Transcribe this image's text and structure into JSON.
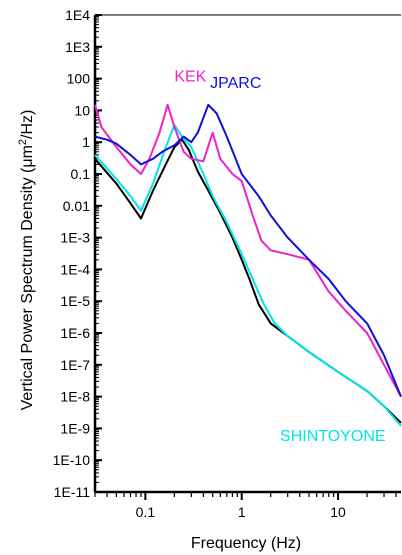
{
  "chart_data": {
    "type": "line",
    "xlabel": "Frequency (Hz)",
    "ylabel_parts": [
      "Vertical Power Spectrum Density (",
      "μm",
      "2",
      "/Hz)"
    ],
    "xscale": "log",
    "yscale": "log",
    "xlim": [
      0.03,
      45
    ],
    "ylim": [
      1e-11,
      10000
    ],
    "x_tick_labels": [
      {
        "value": 0.1,
        "label": "0.1"
      },
      {
        "value": 1,
        "label": "1"
      },
      {
        "value": 10,
        "label": "10"
      }
    ],
    "y_tick_labels": [
      {
        "value": 10000,
        "label": "1E4"
      },
      {
        "value": 1000,
        "label": "1E3"
      },
      {
        "value": 100,
        "label": "100"
      },
      {
        "value": 10,
        "label": "10"
      },
      {
        "value": 1,
        "label": "1"
      },
      {
        "value": 0.1,
        "label": "0.1"
      },
      {
        "value": 0.01,
        "label": "0.01"
      },
      {
        "value": 0.001,
        "label": "1E-3"
      },
      {
        "value": 0.0001,
        "label": "1E-4"
      },
      {
        "value": 1e-05,
        "label": "1E-5"
      },
      {
        "value": 1e-06,
        "label": "1E-6"
      },
      {
        "value": 1e-07,
        "label": "1E-7"
      },
      {
        "value": 1e-08,
        "label": "1E-8"
      },
      {
        "value": 1e-09,
        "label": "1E-9"
      },
      {
        "value": 1e-10,
        "label": "1E-10"
      },
      {
        "value": 1e-11,
        "label": "1E-11"
      }
    ],
    "series": [
      {
        "name": "SHINTOYONE",
        "color": "#000000",
        "points": [
          [
            0.03,
            0.3
          ],
          [
            0.05,
            0.05
          ],
          [
            0.07,
            0.012
          ],
          [
            0.09,
            0.004
          ],
          [
            0.12,
            0.03
          ],
          [
            0.16,
            0.18
          ],
          [
            0.2,
            0.7
          ],
          [
            0.24,
            1.2
          ],
          [
            0.28,
            0.6
          ],
          [
            0.35,
            0.12
          ],
          [
            0.45,
            0.03
          ],
          [
            0.6,
            0.006
          ],
          [
            0.8,
            0.001
          ],
          [
            1.0,
            0.0002
          ],
          [
            1.2,
            5e-05
          ],
          [
            1.5,
            8e-06
          ],
          [
            2.0,
            2e-06
          ],
          [
            3.0,
            8e-07
          ],
          [
            5.0,
            2.5e-07
          ],
          [
            10,
            6e-08
          ],
          [
            20,
            1.5e-08
          ],
          [
            30,
            5e-09
          ],
          [
            45,
            1.5e-09
          ]
        ]
      },
      {
        "name": "SHINTOYONE",
        "color": "#00e5e5",
        "points": [
          [
            0.03,
            0.4
          ],
          [
            0.05,
            0.07
          ],
          [
            0.07,
            0.02
          ],
          [
            0.09,
            0.007
          ],
          [
            0.12,
            0.05
          ],
          [
            0.16,
            0.6
          ],
          [
            0.2,
            3.5
          ],
          [
            0.24,
            1.5
          ],
          [
            0.3,
            0.7
          ],
          [
            0.4,
            0.1
          ],
          [
            0.5,
            0.02
          ],
          [
            0.7,
            0.003
          ],
          [
            1.0,
            0.0003
          ],
          [
            1.3,
            5e-05
          ],
          [
            1.7,
            8e-06
          ],
          [
            2.2,
            2e-06
          ],
          [
            3.0,
            8e-07
          ],
          [
            5.0,
            2.5e-07
          ],
          [
            10,
            6e-08
          ],
          [
            20,
            1.5e-08
          ],
          [
            30,
            5e-09
          ],
          [
            45,
            1.2e-09
          ]
        ]
      },
      {
        "name": "KEK",
        "color": "#ee22cc",
        "points": [
          [
            0.03,
            15
          ],
          [
            0.035,
            3
          ],
          [
            0.05,
            0.7
          ],
          [
            0.07,
            0.2
          ],
          [
            0.09,
            0.1
          ],
          [
            0.11,
            0.3
          ],
          [
            0.14,
            2
          ],
          [
            0.17,
            15
          ],
          [
            0.2,
            3
          ],
          [
            0.25,
            0.5
          ],
          [
            0.3,
            0.3
          ],
          [
            0.4,
            0.25
          ],
          [
            0.5,
            2
          ],
          [
            0.6,
            0.3
          ],
          [
            0.8,
            0.1
          ],
          [
            1.0,
            0.06
          ],
          [
            1.3,
            0.005
          ],
          [
            1.6,
            0.0008
          ],
          [
            2,
            0.0004
          ],
          [
            3,
            0.0003
          ],
          [
            5,
            0.0002
          ],
          [
            8,
            2e-05
          ],
          [
            12,
            5e-06
          ],
          [
            20,
            1e-06
          ],
          [
            30,
            1e-07
          ],
          [
            45,
            1e-08
          ]
        ]
      },
      {
        "name": "JPARC",
        "color": "#1010d8",
        "points": [
          [
            0.03,
            1.5
          ],
          [
            0.04,
            1.2
          ],
          [
            0.05,
            0.9
          ],
          [
            0.07,
            0.4
          ],
          [
            0.09,
            0.2
          ],
          [
            0.12,
            0.3
          ],
          [
            0.15,
            0.5
          ],
          [
            0.2,
            0.8
          ],
          [
            0.25,
            1.5
          ],
          [
            0.3,
            1.0
          ],
          [
            0.35,
            2
          ],
          [
            0.45,
            15
          ],
          [
            0.55,
            8
          ],
          [
            0.7,
            1.5
          ],
          [
            1.0,
            0.1
          ],
          [
            1.5,
            0.02
          ],
          [
            2,
            0.005
          ],
          [
            3,
            0.001
          ],
          [
            5,
            0.0002
          ],
          [
            8,
            5e-05
          ],
          [
            12,
            1e-05
          ],
          [
            20,
            2e-06
          ],
          [
            30,
            2e-07
          ],
          [
            45,
            1e-08
          ]
        ]
      }
    ],
    "series_labels": [
      {
        "text": "KEK",
        "color": "#ee22cc",
        "x": 0.2,
        "y": 80
      },
      {
        "text": "JPARC",
        "color": "#1010d8",
        "x": 0.47,
        "y": 50
      },
      {
        "text": "SHINTOYONE",
        "color": "#00e5e5",
        "x": 2.5,
        "y": 4e-10
      }
    ],
    "grid": false
  }
}
